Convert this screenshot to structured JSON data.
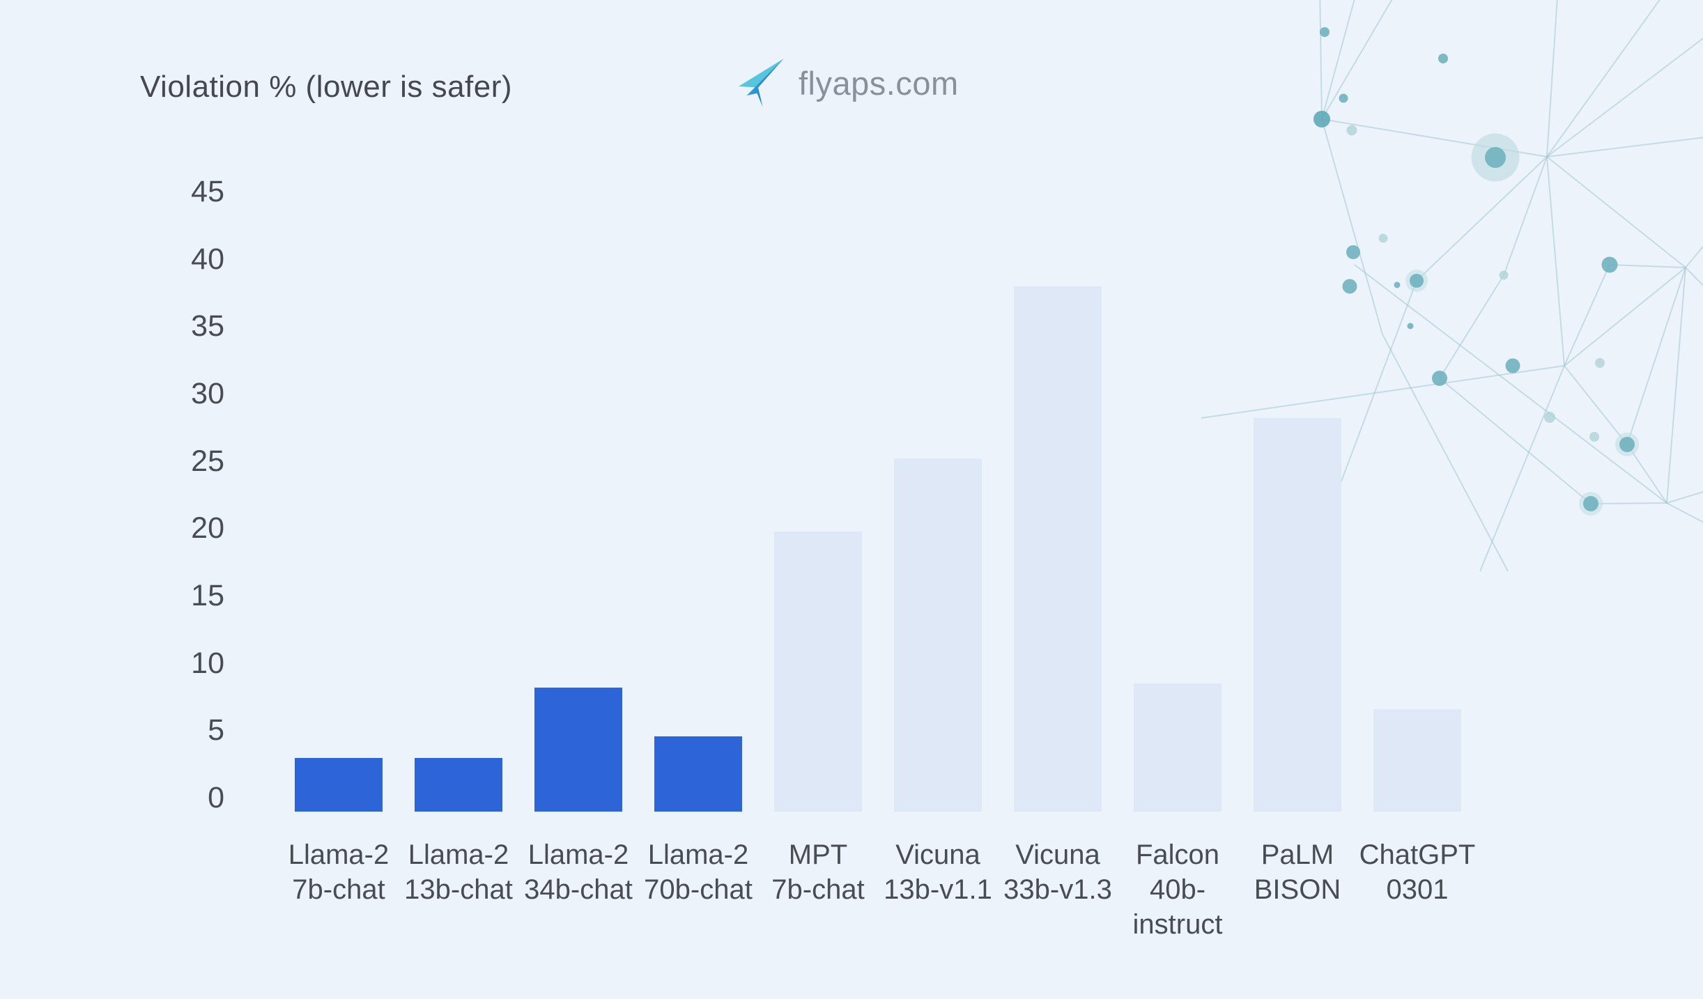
{
  "page": {
    "background": "#EDF3FB"
  },
  "header": {
    "logo": {
      "icon": "paper-plane-icon",
      "text": "flyaps.com",
      "text_color": "#8A9099",
      "icon_gradient": [
        "#57C5DC",
        "#1E7FC8"
      ]
    }
  },
  "chart_data": {
    "type": "bar",
    "title": "Violation % (lower is safer)",
    "categories": [
      "Llama-2 7b-chat",
      "Llama-2 13b-chat",
      "Llama-2 34b-chat",
      "Llama-2 70b-chat",
      "MPT 7b-chat",
      "Vicuna 13b-v1.1",
      "Vicuna 33b-v1.3",
      "Falcon 40b-instruct",
      "PaLM BISON",
      "ChatGPT 0301"
    ],
    "category_label_lines": [
      [
        "Llama-2",
        "7b-chat"
      ],
      [
        "Llama-2",
        "13b-chat"
      ],
      [
        "Llama-2",
        "34b-chat"
      ],
      [
        "Llama-2",
        "70b-chat"
      ],
      [
        "MPT",
        "7b-chat"
      ],
      [
        "Vicuna",
        "13b-v1.1"
      ],
      [
        "Vicuna",
        "33b-v1.3"
      ],
      [
        "Falcon",
        "40b-",
        "instruct"
      ],
      [
        "PaLM",
        "BISON"
      ],
      [
        "ChatGPT",
        "0301"
      ]
    ],
    "values": [
      4,
      4,
      9.2,
      5.6,
      20.8,
      26.2,
      39,
      9.5,
      29.2,
      7.6
    ],
    "emphasized": [
      true,
      true,
      true,
      true,
      false,
      false,
      false,
      false,
      false,
      false
    ],
    "yticks": [
      0,
      5,
      10,
      15,
      20,
      25,
      30,
      35,
      40,
      45
    ],
    "ylim": [
      0,
      45
    ],
    "xlabel": "",
    "ylabel": "",
    "grid": false,
    "legend": "none",
    "colors": {
      "bar_emphasis": "#2D64D8",
      "bar_muted": "#DFE8F7",
      "axis_text": "#494C52",
      "title_text": "#45484E"
    }
  },
  "decoration": {
    "style": "network-mesh",
    "line_color": "#9CC4CC",
    "dot_color": "#6FB3BE",
    "dot_faded_color": "#AFD2D8",
    "halo_color": "#BFDCE1"
  }
}
